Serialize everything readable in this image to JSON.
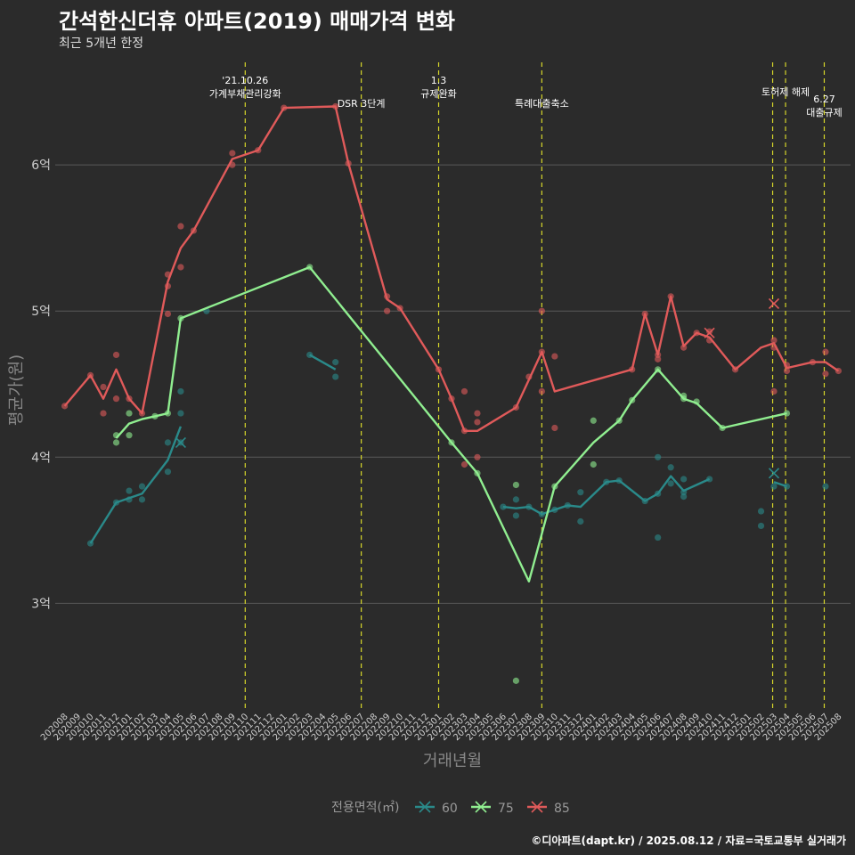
{
  "title": "간석한신더휴 아파트(2019) 매매가격 변화",
  "subtitle": "최근 5개년 한정",
  "caption": "©디아파트(dapt.kr) / 2025.08.12 / 자료=국토교통부 실거래가",
  "chart_data": {
    "type": "line",
    "xlabel": "거래년월",
    "ylabel": "평균가(원)",
    "ylim": [
      2.3,
      6.8
    ],
    "y_ticks": [
      {
        "value": 3,
        "label": "3억"
      },
      {
        "value": 4,
        "label": "4억"
      },
      {
        "value": 5,
        "label": "5억"
      },
      {
        "value": 6,
        "label": "6억"
      }
    ],
    "grid": true,
    "legend_title": "전용면적(㎡)",
    "legend_position": "bottom",
    "categories": [
      "202008",
      "202009",
      "202010",
      "202011",
      "202012",
      "202101",
      "202102",
      "202103",
      "202104",
      "202105",
      "202106",
      "202107",
      "202108",
      "202109",
      "202110",
      "202111",
      "202112",
      "202201",
      "202202",
      "202203",
      "202204",
      "202205",
      "202206",
      "202207",
      "202208",
      "202209",
      "202210",
      "202211",
      "202212",
      "202301",
      "202302",
      "202303",
      "202304",
      "202305",
      "202306",
      "202307",
      "202308",
      "202309",
      "202310",
      "202311",
      "202312",
      "202401",
      "202402",
      "202403",
      "202404",
      "202405",
      "202406",
      "202407",
      "202408",
      "202409",
      "202410",
      "202411",
      "202412",
      "202501",
      "202502",
      "202503",
      "202504",
      "202505",
      "202506",
      "202507",
      "202508"
    ],
    "events": [
      {
        "x": 14.0,
        "lines": [
          "'21.10.26",
          "가계부채관리강화"
        ],
        "label_level": 0
      },
      {
        "x": 23.0,
        "lines": [
          "DSR 3단계"
        ],
        "label_level": 2
      },
      {
        "x": 29.0,
        "lines": [
          "1.3",
          "규제완화"
        ],
        "label_level": 0
      },
      {
        "x": 37.0,
        "lines": [
          "특례대출축소"
        ],
        "label_level": 2
      },
      {
        "x": 54.9,
        "lines": [],
        "label_level": 1
      },
      {
        "x": 55.9,
        "lines": [
          "토허제 해제"
        ],
        "label_level": 1
      },
      {
        "x": 58.9,
        "lines": [
          "6.27",
          "대출규제"
        ],
        "label_level": 1.6
      }
    ],
    "series": [
      {
        "name": "60",
        "color": "#2a8a8a",
        "segments": [
          [
            [
              2,
              3.41
            ],
            [
              4,
              3.69
            ],
            [
              6,
              3.75
            ],
            [
              8,
              3.98
            ],
            [
              9,
              4.21
            ]
          ],
          [
            [
              19,
              4.7
            ],
            [
              21,
              4.6
            ]
          ],
          [
            [
              34,
              3.66
            ],
            [
              35,
              3.65
            ],
            [
              36,
              3.66
            ],
            [
              37,
              3.61
            ],
            [
              38,
              3.64
            ],
            [
              39,
              3.67
            ],
            [
              40,
              3.66
            ],
            [
              42,
              3.83
            ],
            [
              43,
              3.84
            ],
            [
              45,
              3.7
            ],
            [
              46,
              3.75
            ],
            [
              47,
              3.87
            ],
            [
              48,
              3.77
            ],
            [
              50,
              3.85
            ]
          ],
          [
            [
              55,
              3.83
            ],
            [
              56,
              3.8
            ]
          ]
        ],
        "points": [
          [
            2,
            3.41
          ],
          [
            4,
            3.69
          ],
          [
            5,
            3.71
          ],
          [
            5,
            3.77
          ],
          [
            6,
            3.71
          ],
          [
            6,
            3.8
          ],
          [
            8,
            3.9
          ],
          [
            8,
            4.1
          ],
          [
            9,
            4.1
          ],
          [
            9,
            4.3
          ],
          [
            9,
            4.45
          ],
          [
            11,
            5.0
          ],
          [
            19,
            4.7
          ],
          [
            21,
            4.55
          ],
          [
            21,
            4.65
          ],
          [
            34,
            3.66
          ],
          [
            35,
            3.71
          ],
          [
            35,
            3.6
          ],
          [
            36,
            3.66
          ],
          [
            37,
            3.61
          ],
          [
            38,
            3.64
          ],
          [
            39,
            3.67
          ],
          [
            40,
            3.56
          ],
          [
            40,
            3.76
          ],
          [
            42,
            3.83
          ],
          [
            43,
            3.84
          ],
          [
            45,
            3.7
          ],
          [
            46,
            3.45
          ],
          [
            46,
            3.75
          ],
          [
            46,
            4.0
          ],
          [
            47,
            3.82
          ],
          [
            47,
            3.93
          ],
          [
            48,
            3.73
          ],
          [
            48,
            3.76
          ],
          [
            48,
            3.85
          ],
          [
            50,
            3.85
          ],
          [
            54,
            3.53
          ],
          [
            54,
            3.63
          ],
          [
            55,
            3.8
          ],
          [
            56,
            3.8
          ],
          [
            59,
            3.8
          ]
        ],
        "marks": [
          [
            9,
            4.1
          ],
          [
            55,
            3.89
          ]
        ]
      },
      {
        "name": "75",
        "color": "#90ee90",
        "segments": [
          [
            [
              4,
              4.13
            ],
            [
              5,
              4.23
            ],
            [
              6,
              4.26
            ],
            [
              7,
              4.28
            ],
            [
              8,
              4.3
            ],
            [
              9,
              4.95
            ],
            [
              19,
              5.3
            ],
            [
              30,
              4.1
            ],
            [
              32,
              3.89
            ],
            [
              36,
              3.15
            ],
            [
              38,
              3.8
            ],
            [
              41,
              4.1
            ],
            [
              43,
              4.25
            ],
            [
              44,
              4.39
            ],
            [
              46,
              4.6
            ],
            [
              48,
              4.4
            ],
            [
              49,
              4.37
            ],
            [
              51,
              4.2
            ],
            [
              56,
              4.3
            ]
          ]
        ],
        "points": [
          [
            4,
            4.1
          ],
          [
            4,
            4.15
          ],
          [
            5,
            4.3
          ],
          [
            5,
            4.15
          ],
          [
            7,
            4.28
          ],
          [
            8,
            4.3
          ],
          [
            9,
            4.95
          ],
          [
            19,
            5.3
          ],
          [
            30,
            4.1
          ],
          [
            32,
            3.89
          ],
          [
            35,
            3.81
          ],
          [
            35,
            2.47
          ],
          [
            38,
            3.8
          ],
          [
            41,
            3.95
          ],
          [
            41,
            4.25
          ],
          [
            43,
            4.25
          ],
          [
            44,
            4.39
          ],
          [
            46,
            4.6
          ],
          [
            48,
            4.4
          ],
          [
            48,
            4.42
          ],
          [
            49,
            4.38
          ],
          [
            51,
            4.2
          ],
          [
            56,
            4.3
          ]
        ],
        "marks": []
      },
      {
        "name": "85",
        "color": "#e05a5a",
        "segments": [
          [
            [
              0,
              4.35
            ],
            [
              2,
              4.56
            ],
            [
              3,
              4.4
            ],
            [
              4,
              4.6
            ],
            [
              5,
              4.4
            ],
            [
              6,
              4.3
            ],
            [
              8,
              5.2
            ],
            [
              9,
              5.43
            ],
            [
              10,
              5.55
            ],
            [
              13,
              6.04
            ],
            [
              15,
              6.1
            ],
            [
              17,
              6.39
            ],
            [
              21,
              6.4
            ],
            [
              22,
              6.01
            ],
            [
              25,
              5.08
            ],
            [
              26,
              5.02
            ],
            [
              29,
              4.6
            ],
            [
              30,
              4.4
            ],
            [
              31,
              4.18
            ],
            [
              32,
              4.18
            ],
            [
              35,
              4.34
            ],
            [
              37,
              4.72
            ],
            [
              38,
              4.45
            ],
            [
              44,
              4.6
            ],
            [
              45,
              4.98
            ],
            [
              46,
              4.7
            ],
            [
              47,
              5.1
            ],
            [
              48,
              4.76
            ],
            [
              49,
              4.85
            ],
            [
              50,
              4.82
            ],
            [
              52,
              4.6
            ],
            [
              54,
              4.75
            ],
            [
              55,
              4.78
            ],
            [
              56,
              4.61
            ],
            [
              58,
              4.65
            ],
            [
              59,
              4.65
            ],
            [
              60,
              4.59
            ]
          ]
        ],
        "points": [
          [
            0,
            4.35
          ],
          [
            2,
            4.56
          ],
          [
            3,
            4.3
          ],
          [
            3,
            4.48
          ],
          [
            4,
            4.4
          ],
          [
            4,
            4.7
          ],
          [
            5,
            4.4
          ],
          [
            6,
            4.3
          ],
          [
            8,
            4.98
          ],
          [
            8,
            5.17
          ],
          [
            8,
            5.25
          ],
          [
            9,
            5.3
          ],
          [
            9,
            5.58
          ],
          [
            10,
            5.55
          ],
          [
            13,
            6.0
          ],
          [
            13,
            6.08
          ],
          [
            15,
            6.1
          ],
          [
            17,
            6.39
          ],
          [
            21,
            6.4
          ],
          [
            22,
            6.01
          ],
          [
            25,
            5.0
          ],
          [
            25,
            5.1
          ],
          [
            26,
            5.02
          ],
          [
            29,
            4.6
          ],
          [
            30,
            4.4
          ],
          [
            31,
            3.95
          ],
          [
            31,
            4.18
          ],
          [
            31,
            4.45
          ],
          [
            32,
            4.0
          ],
          [
            32,
            4.3
          ],
          [
            32,
            4.24
          ],
          [
            35,
            4.34
          ],
          [
            36,
            4.55
          ],
          [
            37,
            4.45
          ],
          [
            37,
            4.72
          ],
          [
            37,
            5.0
          ],
          [
            38,
            4.2
          ],
          [
            38,
            4.69
          ],
          [
            44,
            4.6
          ],
          [
            45,
            4.98
          ],
          [
            46,
            4.67
          ],
          [
            46,
            4.7
          ],
          [
            47,
            5.1
          ],
          [
            48,
            4.75
          ],
          [
            49,
            4.85
          ],
          [
            50,
            4.8
          ],
          [
            50,
            4.86
          ],
          [
            52,
            4.6
          ],
          [
            55,
            4.45
          ],
          [
            55,
            4.75
          ],
          [
            55,
            4.8
          ],
          [
            56,
            4.59
          ],
          [
            56,
            4.63
          ],
          [
            58,
            4.65
          ],
          [
            59,
            4.57
          ],
          [
            59,
            4.72
          ],
          [
            60,
            4.59
          ]
        ],
        "marks": [
          [
            50,
            4.85
          ],
          [
            55,
            5.05
          ]
        ]
      }
    ]
  }
}
